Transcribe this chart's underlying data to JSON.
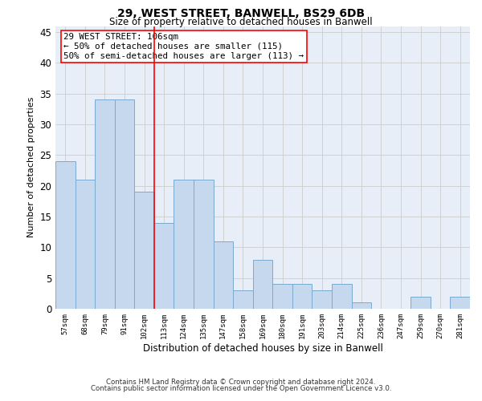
{
  "title1": "29, WEST STREET, BANWELL, BS29 6DB",
  "title2": "Size of property relative to detached houses in Banwell",
  "xlabel": "Distribution of detached houses by size in Banwell",
  "ylabel": "Number of detached properties",
  "categories": [
    "57sqm",
    "68sqm",
    "79sqm",
    "91sqm",
    "102sqm",
    "113sqm",
    "124sqm",
    "135sqm",
    "147sqm",
    "158sqm",
    "169sqm",
    "180sqm",
    "191sqm",
    "203sqm",
    "214sqm",
    "225sqm",
    "236sqm",
    "247sqm",
    "259sqm",
    "270sqm",
    "281sqm"
  ],
  "values": [
    24,
    21,
    34,
    34,
    19,
    14,
    21,
    21,
    11,
    3,
    8,
    4,
    4,
    3,
    4,
    1,
    0,
    0,
    2,
    0,
    2
  ],
  "bar_color": "#c5d8ed",
  "bar_edge_color": "#7aaace",
  "bar_edge_width": 0.7,
  "vline_x": 4.5,
  "vline_color": "red",
  "vline_linewidth": 1.2,
  "annotation_text": "29 WEST STREET: 106sqm\n← 50% of detached houses are smaller (115)\n50% of semi-detached houses are larger (113) →",
  "annotation_box_color": "white",
  "annotation_box_edge_color": "red",
  "ylim": [
    0,
    46
  ],
  "yticks": [
    0,
    5,
    10,
    15,
    20,
    25,
    30,
    35,
    40,
    45
  ],
  "grid_color": "#cccccc",
  "bg_color": "#e8eef8",
  "footnote1": "Contains HM Land Registry data © Crown copyright and database right 2024.",
  "footnote2": "Contains public sector information licensed under the Open Government Licence v3.0."
}
